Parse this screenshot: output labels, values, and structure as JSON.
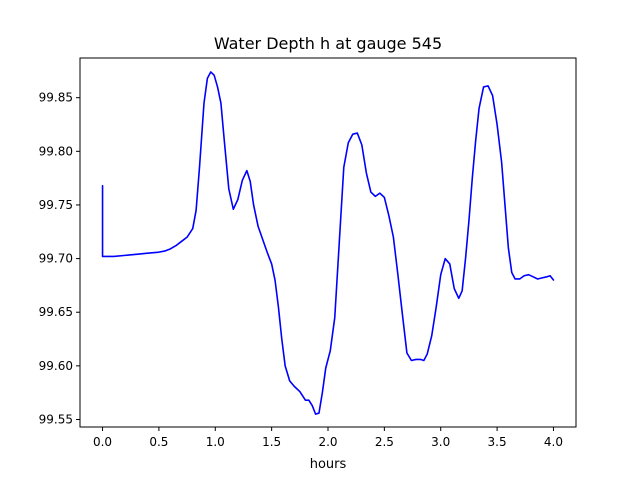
{
  "chart_data": {
    "type": "line",
    "title": "Water Depth h at gauge 545",
    "xlabel": "hours",
    "ylabel": "",
    "xlim": [
      -0.2,
      4.2
    ],
    "ylim": [
      99.543,
      99.887
    ],
    "xticks": [
      0.0,
      0.5,
      1.0,
      1.5,
      2.0,
      2.5,
      3.0,
      3.5,
      4.0
    ],
    "xtick_labels": [
      "0.0",
      "0.5",
      "1.0",
      "1.5",
      "2.0",
      "2.5",
      "3.0",
      "3.5",
      "4.0"
    ],
    "yticks": [
      99.55,
      99.6,
      99.65,
      99.7,
      99.75,
      99.8,
      99.85
    ],
    "ytick_labels": [
      "99.55",
      "99.60",
      "99.65",
      "99.70",
      "99.75",
      "99.80",
      "99.85"
    ],
    "grid": false,
    "series": [
      {
        "color": "#0000ff",
        "x": [
          0.0,
          0.0,
          0.1,
          0.2,
          0.3,
          0.4,
          0.5,
          0.55,
          0.6,
          0.65,
          0.7,
          0.75,
          0.8,
          0.83,
          0.86,
          0.9,
          0.93,
          0.96,
          0.99,
          1.02,
          1.05,
          1.08,
          1.12,
          1.16,
          1.2,
          1.24,
          1.28,
          1.31,
          1.34,
          1.38,
          1.42,
          1.46,
          1.5,
          1.53,
          1.56,
          1.59,
          1.62,
          1.66,
          1.7,
          1.75,
          1.8,
          1.83,
          1.86,
          1.89,
          1.92,
          1.95,
          1.98,
          2.02,
          2.06,
          2.1,
          2.14,
          2.18,
          2.22,
          2.26,
          2.3,
          2.34,
          2.38,
          2.42,
          2.46,
          2.5,
          2.54,
          2.58,
          2.62,
          2.66,
          2.7,
          2.74,
          2.78,
          2.82,
          2.85,
          2.88,
          2.92,
          2.96,
          3.0,
          3.04,
          3.08,
          3.12,
          3.16,
          3.19,
          3.22,
          3.25,
          3.28,
          3.31,
          3.34,
          3.38,
          3.42,
          3.46,
          3.5,
          3.54,
          3.57,
          3.6,
          3.63,
          3.66,
          3.7,
          3.74,
          3.78,
          3.82,
          3.86,
          3.9,
          3.94,
          3.97,
          4.0
        ],
        "y": [
          99.768,
          99.702,
          99.702,
          99.703,
          99.704,
          99.705,
          99.706,
          99.707,
          99.709,
          99.712,
          99.716,
          99.72,
          99.728,
          99.745,
          99.785,
          99.845,
          99.868,
          99.874,
          99.871,
          99.86,
          99.845,
          99.81,
          99.765,
          99.746,
          99.755,
          99.773,
          99.782,
          99.772,
          99.75,
          99.73,
          99.718,
          99.706,
          99.695,
          99.68,
          99.655,
          99.625,
          99.6,
          99.586,
          99.581,
          99.576,
          99.568,
          99.568,
          99.563,
          99.555,
          99.556,
          99.575,
          99.598,
          99.614,
          99.645,
          99.715,
          99.785,
          99.808,
          99.816,
          99.817,
          99.806,
          99.78,
          99.762,
          99.758,
          99.761,
          99.757,
          99.74,
          99.72,
          99.685,
          99.648,
          99.612,
          99.605,
          99.606,
          99.606,
          99.605,
          99.611,
          99.628,
          99.655,
          99.685,
          99.7,
          99.695,
          99.672,
          99.663,
          99.67,
          99.7,
          99.735,
          99.775,
          99.81,
          99.84,
          99.86,
          99.861,
          99.852,
          99.825,
          99.79,
          99.75,
          99.71,
          99.687,
          99.681,
          99.681,
          99.684,
          99.685,
          99.683,
          99.681,
          99.682,
          99.683,
          99.684,
          99.68
        ]
      }
    ]
  }
}
